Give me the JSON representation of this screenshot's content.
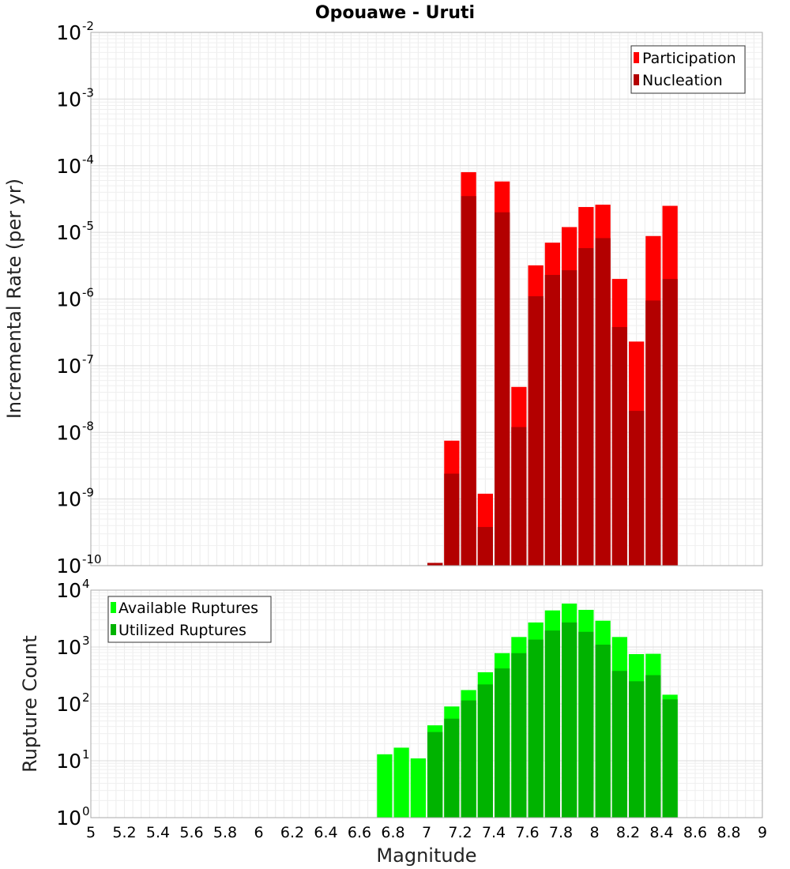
{
  "chart_data": [
    {
      "type": "bar",
      "title": "Opouawe - Uruti",
      "ylabel": "Incremental Rate (per yr)",
      "xlabel": "",
      "xlim": [
        5,
        9
      ],
      "ylim": [
        1e-10,
        0.01
      ],
      "yscale": "log",
      "grid": true,
      "legend_position": "top-right",
      "bar_width": 0.1,
      "y_ticks": [
        {
          "base": "10",
          "exp": "-10",
          "value": 1e-10
        },
        {
          "base": "10",
          "exp": "-9",
          "value": 1e-09
        },
        {
          "base": "10",
          "exp": "-8",
          "value": 1e-08
        },
        {
          "base": "10",
          "exp": "-7",
          "value": 1e-07
        },
        {
          "base": "10",
          "exp": "-6",
          "value": 1e-06
        },
        {
          "base": "10",
          "exp": "-5",
          "value": 1e-05
        },
        {
          "base": "10",
          "exp": "-4",
          "value": 0.0001
        },
        {
          "base": "10",
          "exp": "-3",
          "value": 0.001
        },
        {
          "base": "10",
          "exp": "-2",
          "value": 0.01
        }
      ],
      "series": [
        {
          "name": "Participation",
          "color": "#ff0000",
          "x": [
            7.05,
            7.15,
            7.25,
            7.35,
            7.45,
            7.55,
            7.65,
            7.75,
            7.85,
            7.95,
            8.05,
            8.15,
            8.25,
            8.35,
            8.45
          ],
          "values": [
            1.1e-10,
            7.5e-09,
            8e-05,
            1.2e-09,
            5.8e-05,
            4.8e-08,
            3.2e-06,
            7e-06,
            1.2e-05,
            2.4e-05,
            2.6e-05,
            2e-06,
            2.3e-07,
            8.8e-06,
            2.5e-05
          ]
        },
        {
          "name": "Nucleation",
          "color": "#b30000",
          "x": [
            7.05,
            7.15,
            7.25,
            7.35,
            7.45,
            7.55,
            7.65,
            7.75,
            7.85,
            7.95,
            8.05,
            8.15,
            8.25,
            8.35,
            8.45
          ],
          "values": [
            1.1e-10,
            2.4e-09,
            3.5e-05,
            3.8e-10,
            2e-05,
            1.2e-08,
            1.1e-06,
            2.3e-06,
            2.7e-06,
            5.8e-06,
            8.2e-06,
            3.8e-07,
            2.1e-08,
            9.5e-07,
            2e-06
          ]
        }
      ]
    },
    {
      "type": "bar",
      "title": "",
      "ylabel": "Rupture Count",
      "xlabel": "Magnitude",
      "xlim": [
        5,
        9
      ],
      "ylim": [
        1,
        10000
      ],
      "yscale": "log",
      "grid": true,
      "legend_position": "top-left",
      "bar_width": 0.1,
      "x_ticks": [
        "5",
        "5.2",
        "5.4",
        "5.6",
        "5.8",
        "6",
        "6.2",
        "6.4",
        "6.6",
        "6.8",
        "7",
        "7.2",
        "7.4",
        "7.6",
        "7.8",
        "8",
        "8.2",
        "8.4",
        "8.6",
        "8.8",
        "9"
      ],
      "y_ticks": [
        {
          "base": "10",
          "exp": "0",
          "value": 1
        },
        {
          "base": "10",
          "exp": "1",
          "value": 10
        },
        {
          "base": "10",
          "exp": "2",
          "value": 100
        },
        {
          "base": "10",
          "exp": "3",
          "value": 1000
        },
        {
          "base": "10",
          "exp": "4",
          "value": 10000
        }
      ],
      "series": [
        {
          "name": "Available Ruptures",
          "color": "#00ff00",
          "x": [
            6.75,
            6.85,
            6.95,
            7.05,
            7.15,
            7.25,
            7.35,
            7.45,
            7.55,
            7.65,
            7.75,
            7.85,
            7.95,
            8.05,
            8.15,
            8.25,
            8.35,
            8.45
          ],
          "values": [
            13,
            17,
            11,
            42,
            90,
            175,
            360,
            780,
            1500,
            2700,
            4400,
            5800,
            4500,
            2900,
            1500,
            750,
            760,
            145
          ]
        },
        {
          "name": "Utilized Ruptures",
          "color": "#00b300",
          "x": [
            6.75,
            6.85,
            6.95,
            7.05,
            7.15,
            7.25,
            7.35,
            7.45,
            7.55,
            7.65,
            7.75,
            7.85,
            7.95,
            8.05,
            8.15,
            8.25,
            8.35,
            8.45
          ],
          "values": [
            null,
            null,
            null,
            32,
            55,
            115,
            220,
            420,
            780,
            1350,
            1950,
            2700,
            1850,
            1100,
            380,
            250,
            320,
            120
          ]
        }
      ]
    }
  ]
}
